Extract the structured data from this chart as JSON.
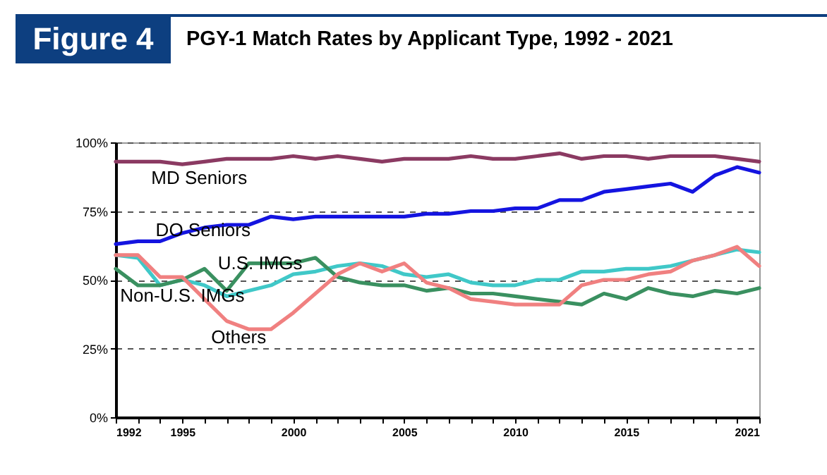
{
  "chart_data": {
    "type": "line",
    "title": "Figure 4",
    "subtitle": "PGY-1 Match Rates by Applicant Type, 1992 - 2021",
    "x": [
      1992,
      1993,
      1994,
      1995,
      1996,
      1997,
      1998,
      1999,
      2000,
      2001,
      2002,
      2003,
      2004,
      2005,
      2006,
      2007,
      2008,
      2009,
      2010,
      2011,
      2012,
      2013,
      2014,
      2015,
      2016,
      2017,
      2018,
      2019,
      2020,
      2021
    ],
    "series": [
      {
        "name": "MD Seniors",
        "color": "#8b3a62",
        "values": [
          93,
          93,
          93,
          92,
          93,
          94,
          94,
          94,
          95,
          94,
          95,
          94,
          93,
          94,
          94,
          94,
          95,
          94,
          94,
          95,
          96,
          94,
          95,
          95,
          94,
          95,
          95,
          95,
          94,
          93
        ]
      },
      {
        "name": "DO Seniors",
        "color": "#1414e0",
        "values": [
          63,
          64,
          64,
          67,
          69,
          70,
          70,
          73,
          72,
          73,
          73,
          73,
          73,
          73,
          74,
          74,
          75,
          75,
          76,
          76,
          79,
          79,
          82,
          83,
          84,
          85,
          82,
          88,
          91,
          89
        ]
      },
      {
        "name": "U.S. IMGs",
        "color": "#40c8c8",
        "values": [
          59,
          58,
          48,
          50,
          48,
          44,
          46,
          48,
          52,
          53,
          55,
          56,
          55,
          52,
          51,
          52,
          49,
          48,
          48,
          50,
          50,
          53,
          53,
          54,
          54,
          55,
          57,
          59,
          61,
          60
        ]
      },
      {
        "name": "Non-U.S. IMGs",
        "color": "#3a9060",
        "values": [
          54,
          48,
          48,
          50,
          54,
          46,
          56,
          56,
          56,
          58,
          51,
          49,
          48,
          48,
          46,
          47,
          45,
          45,
          44,
          43,
          42,
          41,
          45,
          43,
          47,
          45,
          44,
          46,
          45,
          47
        ]
      },
      {
        "name": "Others",
        "color": "#f08080",
        "values": [
          59,
          59,
          51,
          51,
          43,
          35,
          32,
          32,
          38,
          45,
          52,
          56,
          53,
          56,
          49,
          47,
          43,
          42,
          41,
          41,
          41,
          48,
          50,
          50,
          52,
          53,
          57,
          59,
          62,
          55
        ]
      }
    ],
    "xlim": [
      1992,
      2021
    ],
    "xticks": [
      1992,
      {
        "value": 1993,
        "label": null
      },
      {
        "value": 1994,
        "label": null
      },
      1995,
      {
        "value": 1996,
        "label": null
      },
      {
        "value": 1997,
        "label": null
      },
      {
        "value": 1998,
        "label": null
      },
      {
        "value": 1999,
        "label": null
      },
      2000,
      {
        "value": 2001,
        "label": null
      },
      {
        "value": 2002,
        "label": null
      },
      {
        "value": 2003,
        "label": null
      },
      {
        "value": 2004,
        "label": null
      },
      2005,
      {
        "value": 2006,
        "label": null
      },
      {
        "value": 2007,
        "label": null
      },
      {
        "value": 2008,
        "label": null
      },
      {
        "value": 2009,
        "label": null
      },
      2010,
      {
        "value": 2011,
        "label": null
      },
      {
        "value": 2012,
        "label": null
      },
      {
        "value": 2013,
        "label": null
      },
      {
        "value": 2014,
        "label": null
      },
      2015,
      {
        "value": 2016,
        "label": null
      },
      {
        "value": 2017,
        "label": null
      },
      {
        "value": 2018,
        "label": null
      },
      {
        "value": 2019,
        "label": null
      },
      {
        "value": 2020,
        "label": null
      },
      2021
    ],
    "ylim": [
      0,
      100
    ],
    "yticks": [
      {
        "value": 0,
        "label": "0%"
      },
      {
        "value": 25,
        "label": "25%"
      },
      {
        "value": 50,
        "label": "50%"
      },
      {
        "value": 75,
        "label": "75%"
      },
      {
        "value": 100,
        "label": "100%"
      }
    ],
    "grid": "y"
  }
}
